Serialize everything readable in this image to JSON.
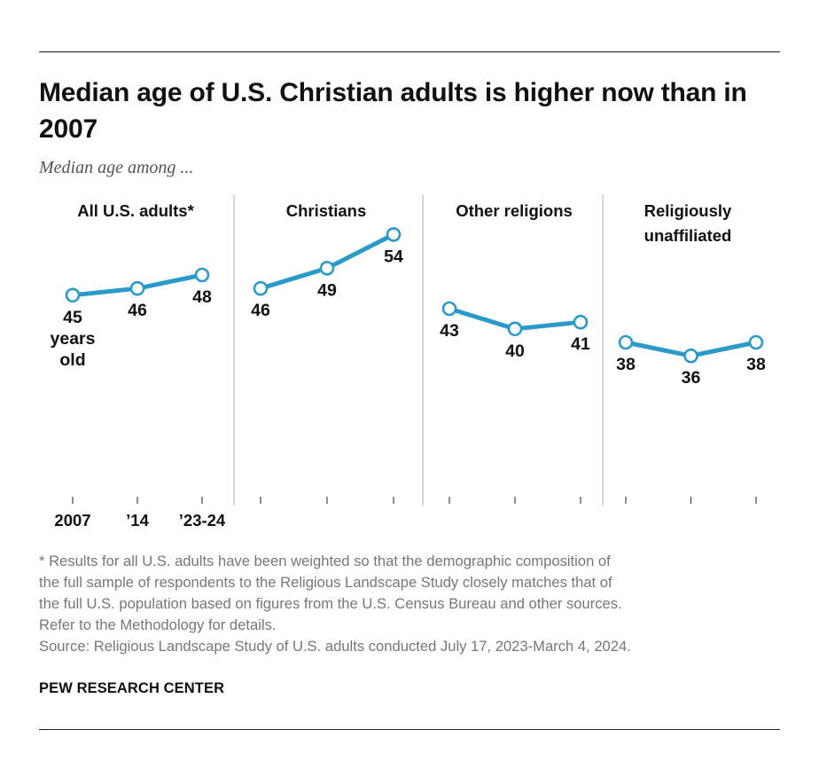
{
  "title": "Median age of U.S. Christian adults is higher now than in 2007",
  "subtitle": "Median age among ...",
  "colors": {
    "line": "#2a9ac8",
    "marker_fill": "#ffffff",
    "divider": "#bdbdbd",
    "axis": "#444444"
  },
  "chart_data": {
    "type": "line",
    "categories": [
      "2007",
      "’14",
      "’23-24"
    ],
    "value_unit_label": "years old",
    "ylim": [
      0,
      60
    ],
    "grid": false,
    "panels": [
      {
        "title": "All U.S. adults*",
        "values": [
          45,
          46,
          48
        ],
        "show_x_labels": true,
        "first_value_suffix": [
          "years",
          "old"
        ]
      },
      {
        "title": "Christians",
        "values": [
          46,
          49,
          54
        ],
        "show_x_labels": false
      },
      {
        "title": "Other religions",
        "values": [
          43,
          40,
          41
        ],
        "show_x_labels": false
      },
      {
        "title": "Religiously unaffiliated",
        "values": [
          38,
          36,
          38
        ],
        "show_x_labels": false
      }
    ]
  },
  "footnotes": [
    "* Results for all U.S. adults have been weighted so that the demographic composition of",
    "the full sample of respondents to the Religious Landscape Study closely matches that of",
    "the full U.S. population based on figures from the U.S. Census Bureau and other sources.",
    "Refer to the Methodology for details.",
    "Source: Religious Landscape Study of U.S. adults conducted July 17, 2023-March 4, 2024."
  ],
  "brand": "PEW RESEARCH CENTER"
}
